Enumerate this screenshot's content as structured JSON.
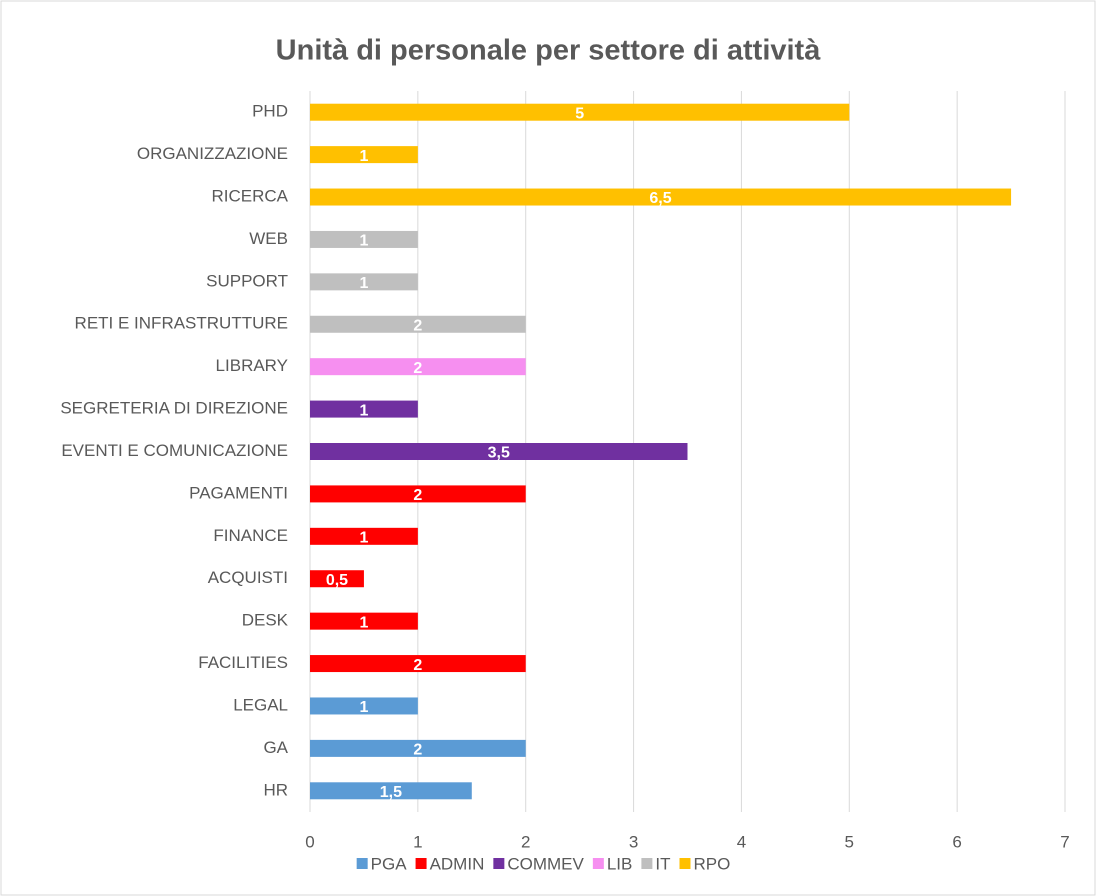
{
  "chart_data": {
    "type": "barh",
    "title": "Unità di personale per settore di attività",
    "categories": [
      "HR",
      "GA",
      "LEGAL",
      "FACILITIES",
      "DESK",
      "ACQUISTI",
      "FINANCE",
      "PAGAMENTI",
      "EVENTI E COMUNICAZIONE",
      "SEGRETERIA DI DIREZIONE",
      "LIBRARY",
      "RETI E INFRASTRUTTURE",
      "SUPPORT",
      "WEB",
      "RICERCA",
      "ORGANIZZAZIONE",
      "PHD"
    ],
    "series": [
      {
        "name": "PGA",
        "color": "#5b9bd5",
        "values": [
          1.5,
          2,
          1,
          null,
          null,
          null,
          null,
          null,
          null,
          null,
          null,
          null,
          null,
          null,
          null,
          null,
          null
        ],
        "value_labels": [
          "1,5",
          "2",
          "1",
          null,
          null,
          null,
          null,
          null,
          null,
          null,
          null,
          null,
          null,
          null,
          null,
          null,
          null
        ]
      },
      {
        "name": "ADMIN",
        "color": "#ff0000",
        "values": [
          null,
          null,
          null,
          2,
          1,
          0.5,
          1,
          2,
          null,
          null,
          null,
          null,
          null,
          null,
          null,
          null,
          null
        ],
        "value_labels": [
          null,
          null,
          null,
          "2",
          "1",
          "0,5",
          "1",
          "2",
          null,
          null,
          null,
          null,
          null,
          null,
          null,
          null,
          null
        ]
      },
      {
        "name": "COMMEV",
        "color": "#7030a0",
        "values": [
          null,
          null,
          null,
          null,
          null,
          null,
          null,
          null,
          3.5,
          1,
          null,
          null,
          null,
          null,
          null,
          null,
          null
        ],
        "value_labels": [
          null,
          null,
          null,
          null,
          null,
          null,
          null,
          null,
          "3,5",
          "1",
          null,
          null,
          null,
          null,
          null,
          null,
          null
        ]
      },
      {
        "name": "LIB",
        "color": "#f68ff0",
        "values": [
          null,
          null,
          null,
          null,
          null,
          null,
          null,
          null,
          null,
          null,
          2,
          null,
          null,
          null,
          null,
          null,
          null
        ],
        "value_labels": [
          null,
          null,
          null,
          null,
          null,
          null,
          null,
          null,
          null,
          null,
          "2",
          null,
          null,
          null,
          null,
          null,
          null
        ]
      },
      {
        "name": "IT",
        "color": "#bfbfbf",
        "values": [
          null,
          null,
          null,
          null,
          null,
          null,
          null,
          null,
          null,
          null,
          null,
          2,
          1,
          1,
          null,
          null,
          null
        ],
        "value_labels": [
          null,
          null,
          null,
          null,
          null,
          null,
          null,
          null,
          null,
          null,
          null,
          "2",
          "1",
          "1",
          null,
          null,
          null
        ]
      },
      {
        "name": "RPO",
        "color": "#ffc000",
        "values": [
          null,
          null,
          null,
          null,
          null,
          null,
          null,
          null,
          null,
          null,
          null,
          null,
          null,
          null,
          6.5,
          1,
          5
        ],
        "value_labels": [
          null,
          null,
          null,
          null,
          null,
          null,
          null,
          null,
          null,
          null,
          null,
          null,
          null,
          null,
          "6,5",
          "1",
          "5"
        ]
      }
    ],
    "xlim": [
      0,
      7
    ],
    "xticks": [
      0,
      1,
      2,
      3,
      4,
      5,
      6,
      7
    ],
    "grid": true,
    "legend": "bottom"
  }
}
